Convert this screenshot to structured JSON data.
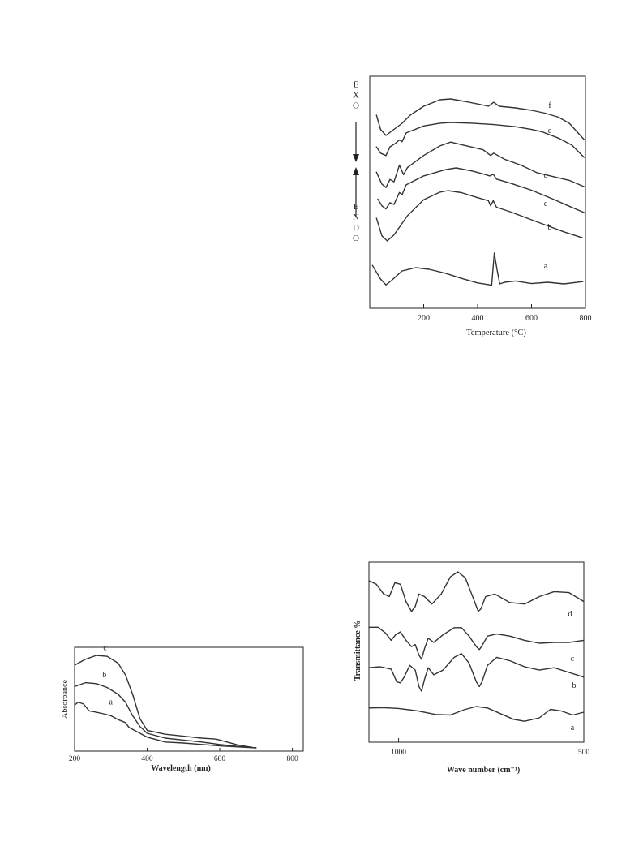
{
  "dta_figure": {
    "type": "line",
    "xlabel": "Temperature (°C)",
    "x_ticks": [
      "200",
      "400",
      "600",
      "800"
    ],
    "xlim": [
      0,
      800
    ],
    "exo_label": "EXO",
    "endo_label": "ENDO",
    "series": [
      {
        "label": "a",
        "points": [
          [
            10,
            0.62
          ],
          [
            40,
            0.2
          ],
          [
            60,
            0.02
          ],
          [
            80,
            0.15
          ],
          [
            120,
            0.45
          ],
          [
            170,
            0.55
          ],
          [
            220,
            0.5
          ],
          [
            280,
            0.38
          ],
          [
            340,
            0.22
          ],
          [
            400,
            0.08
          ],
          [
            445,
            0.02
          ],
          [
            452,
            0.0
          ],
          [
            462,
            1.0
          ],
          [
            472,
            0.5
          ],
          [
            482,
            0.05
          ],
          [
            500,
            0.1
          ],
          [
            540,
            0.14
          ],
          [
            600,
            0.06
          ],
          [
            660,
            0.1
          ],
          [
            720,
            0.05
          ],
          [
            790,
            0.12
          ]
        ]
      },
      {
        "label": "b",
        "points": [
          [
            25,
            0.45
          ],
          [
            45,
            0.1
          ],
          [
            65,
            0.0
          ],
          [
            90,
            0.12
          ],
          [
            140,
            0.5
          ],
          [
            200,
            0.82
          ],
          [
            260,
            0.97
          ],
          [
            290,
            1.0
          ],
          [
            340,
            0.96
          ],
          [
            400,
            0.86
          ],
          [
            440,
            0.8
          ],
          [
            448,
            0.7
          ],
          [
            458,
            0.8
          ],
          [
            470,
            0.67
          ],
          [
            520,
            0.58
          ],
          [
            600,
            0.42
          ],
          [
            660,
            0.3
          ],
          [
            720,
            0.18
          ],
          [
            790,
            0.06
          ]
        ]
      },
      {
        "label": "c",
        "points": [
          [
            30,
            0.3
          ],
          [
            45,
            0.15
          ],
          [
            60,
            0.08
          ],
          [
            75,
            0.22
          ],
          [
            90,
            0.18
          ],
          [
            110,
            0.45
          ],
          [
            120,
            0.4
          ],
          [
            135,
            0.62
          ],
          [
            200,
            0.82
          ],
          [
            280,
            0.96
          ],
          [
            320,
            1.0
          ],
          [
            380,
            0.93
          ],
          [
            430,
            0.85
          ],
          [
            445,
            0.82
          ],
          [
            458,
            0.86
          ],
          [
            470,
            0.75
          ],
          [
            520,
            0.66
          ],
          [
            600,
            0.5
          ],
          [
            680,
            0.3
          ],
          [
            740,
            0.14
          ],
          [
            795,
            0.0
          ]
        ]
      },
      {
        "label": "d",
        "points": [
          [
            25,
            0.35
          ],
          [
            45,
            0.1
          ],
          [
            60,
            0.03
          ],
          [
            75,
            0.2
          ],
          [
            90,
            0.15
          ],
          [
            110,
            0.5
          ],
          [
            125,
            0.3
          ],
          [
            140,
            0.45
          ],
          [
            200,
            0.7
          ],
          [
            260,
            0.9
          ],
          [
            300,
            0.98
          ],
          [
            360,
            0.9
          ],
          [
            420,
            0.82
          ],
          [
            448,
            0.7
          ],
          [
            460,
            0.75
          ],
          [
            500,
            0.62
          ],
          [
            560,
            0.5
          ],
          [
            620,
            0.34
          ],
          [
            680,
            0.26
          ],
          [
            740,
            0.18
          ],
          [
            795,
            0.05
          ]
        ]
      },
      {
        "label": "e",
        "points": [
          [
            25,
            0.3
          ],
          [
            40,
            0.12
          ],
          [
            60,
            0.05
          ],
          [
            75,
            0.3
          ],
          [
            95,
            0.4
          ],
          [
            110,
            0.5
          ],
          [
            120,
            0.45
          ],
          [
            135,
            0.7
          ],
          [
            200,
            0.9
          ],
          [
            260,
            0.98
          ],
          [
            300,
            1.0
          ],
          [
            380,
            0.98
          ],
          [
            460,
            0.94
          ],
          [
            540,
            0.88
          ],
          [
            600,
            0.8
          ],
          [
            640,
            0.73
          ],
          [
            700,
            0.55
          ],
          [
            750,
            0.35
          ],
          [
            795,
            0.0
          ]
        ]
      },
      {
        "label": "f",
        "points": [
          [
            25,
            0.5
          ],
          [
            40,
            0.15
          ],
          [
            60,
            0.0
          ],
          [
            80,
            0.1
          ],
          [
            120,
            0.3
          ],
          [
            150,
            0.5
          ],
          [
            200,
            0.72
          ],
          [
            260,
            0.88
          ],
          [
            300,
            0.9
          ],
          [
            360,
            0.83
          ],
          [
            420,
            0.75
          ],
          [
            440,
            0.72
          ],
          [
            460,
            0.82
          ],
          [
            480,
            0.72
          ],
          [
            540,
            0.68
          ],
          [
            600,
            0.62
          ],
          [
            650,
            0.55
          ],
          [
            700,
            0.45
          ],
          [
            740,
            0.3
          ],
          [
            795,
            -0.1
          ]
        ]
      }
    ]
  },
  "uv_figure": {
    "type": "line",
    "xlabel": "Wavelength (nm)",
    "ylabel": "Absorbance",
    "x_ticks": [
      "200",
      "400",
      "600",
      "800"
    ],
    "xlim": [
      200,
      830
    ],
    "ylim": [
      0,
      1
    ],
    "series": [
      {
        "label": "a",
        "points": [
          [
            200,
            0.44
          ],
          [
            210,
            0.47
          ],
          [
            225,
            0.45
          ],
          [
            240,
            0.38
          ],
          [
            255,
            0.37
          ],
          [
            280,
            0.35
          ],
          [
            300,
            0.33
          ],
          [
            320,
            0.29
          ],
          [
            340,
            0.26
          ],
          [
            350,
            0.21
          ],
          [
            370,
            0.17
          ],
          [
            400,
            0.11
          ],
          [
            450,
            0.06
          ],
          [
            500,
            0.05
          ],
          [
            550,
            0.035
          ],
          [
            600,
            0.02
          ],
          [
            650,
            0.01
          ],
          [
            700,
            0.0
          ]
        ]
      },
      {
        "label": "b",
        "points": [
          [
            200,
            0.63
          ],
          [
            230,
            0.67
          ],
          [
            260,
            0.66
          ],
          [
            290,
            0.62
          ],
          [
            320,
            0.55
          ],
          [
            340,
            0.47
          ],
          [
            360,
            0.33
          ],
          [
            380,
            0.22
          ],
          [
            400,
            0.15
          ],
          [
            450,
            0.1
          ],
          [
            500,
            0.08
          ],
          [
            550,
            0.06
          ],
          [
            600,
            0.035
          ],
          [
            650,
            0.015
          ],
          [
            700,
            0.0
          ]
        ]
      },
      {
        "label": "c",
        "points": [
          [
            200,
            0.85
          ],
          [
            230,
            0.91
          ],
          [
            260,
            0.95
          ],
          [
            290,
            0.94
          ],
          [
            320,
            0.87
          ],
          [
            340,
            0.75
          ],
          [
            360,
            0.55
          ],
          [
            380,
            0.3
          ],
          [
            400,
            0.18
          ],
          [
            450,
            0.14
          ],
          [
            500,
            0.12
          ],
          [
            550,
            0.1
          ],
          [
            590,
            0.09
          ],
          [
            620,
            0.06
          ],
          [
            650,
            0.03
          ],
          [
            690,
            0.005
          ]
        ]
      }
    ]
  },
  "ir_figure": {
    "type": "line",
    "xlabel": "Wave number (cm⁻¹)",
    "ylabel": "Transmittance %",
    "x_ticks": [
      "1000",
      "500"
    ],
    "xlim": [
      1080,
      500
    ],
    "series": [
      {
        "label": "a",
        "points": [
          [
            1080,
            0.55
          ],
          [
            1040,
            0.56
          ],
          [
            1000,
            0.53
          ],
          [
            950,
            0.45
          ],
          [
            900,
            0.32
          ],
          [
            860,
            0.3
          ],
          [
            820,
            0.5
          ],
          [
            790,
            0.6
          ],
          [
            760,
            0.55
          ],
          [
            720,
            0.32
          ],
          [
            690,
            0.15
          ],
          [
            660,
            0.08
          ],
          [
            620,
            0.2
          ],
          [
            590,
            0.5
          ],
          [
            560,
            0.44
          ],
          [
            530,
            0.3
          ],
          [
            500,
            0.4
          ]
        ]
      },
      {
        "label": "b",
        "points": [
          [
            1080,
            0.6
          ],
          [
            1050,
            0.62
          ],
          [
            1020,
            0.57
          ],
          [
            1005,
            0.3
          ],
          [
            995,
            0.28
          ],
          [
            985,
            0.4
          ],
          [
            970,
            0.65
          ],
          [
            955,
            0.55
          ],
          [
            945,
            0.2
          ],
          [
            938,
            0.1
          ],
          [
            930,
            0.35
          ],
          [
            920,
            0.6
          ],
          [
            905,
            0.45
          ],
          [
            880,
            0.55
          ],
          [
            850,
            0.82
          ],
          [
            830,
            0.9
          ],
          [
            810,
            0.7
          ],
          [
            790,
            0.3
          ],
          [
            782,
            0.2
          ],
          [
            775,
            0.3
          ],
          [
            760,
            0.65
          ],
          [
            735,
            0.82
          ],
          [
            700,
            0.75
          ],
          [
            660,
            0.62
          ],
          [
            620,
            0.55
          ],
          [
            580,
            0.6
          ],
          [
            540,
            0.5
          ],
          [
            500,
            0.4
          ]
        ]
      },
      {
        "label": "c",
        "points": [
          [
            1080,
            0.86
          ],
          [
            1055,
            0.86
          ],
          [
            1035,
            0.72
          ],
          [
            1020,
            0.55
          ],
          [
            1008,
            0.68
          ],
          [
            995,
            0.75
          ],
          [
            980,
            0.55
          ],
          [
            965,
            0.4
          ],
          [
            955,
            0.45
          ],
          [
            945,
            0.2
          ],
          [
            938,
            0.1
          ],
          [
            930,
            0.35
          ],
          [
            920,
            0.6
          ],
          [
            905,
            0.5
          ],
          [
            880,
            0.68
          ],
          [
            850,
            0.85
          ],
          [
            830,
            0.85
          ],
          [
            810,
            0.65
          ],
          [
            790,
            0.4
          ],
          [
            782,
            0.33
          ],
          [
            775,
            0.42
          ],
          [
            760,
            0.65
          ],
          [
            735,
            0.7
          ],
          [
            700,
            0.65
          ],
          [
            660,
            0.55
          ],
          [
            620,
            0.48
          ],
          [
            580,
            0.5
          ],
          [
            540,
            0.5
          ],
          [
            500,
            0.55
          ]
        ]
      },
      {
        "label": "d",
        "points": [
          [
            1080,
            0.82
          ],
          [
            1060,
            0.75
          ],
          [
            1040,
            0.55
          ],
          [
            1025,
            0.5
          ],
          [
            1010,
            0.78
          ],
          [
            995,
            0.75
          ],
          [
            980,
            0.4
          ],
          [
            965,
            0.2
          ],
          [
            955,
            0.3
          ],
          [
            945,
            0.55
          ],
          [
            930,
            0.5
          ],
          [
            910,
            0.35
          ],
          [
            885,
            0.55
          ],
          [
            860,
            0.9
          ],
          [
            840,
            1.0
          ],
          [
            820,
            0.88
          ],
          [
            800,
            0.5
          ],
          [
            785,
            0.2
          ],
          [
            778,
            0.25
          ],
          [
            765,
            0.5
          ],
          [
            740,
            0.55
          ],
          [
            700,
            0.38
          ],
          [
            660,
            0.35
          ],
          [
            620,
            0.5
          ],
          [
            580,
            0.6
          ],
          [
            540,
            0.58
          ],
          [
            500,
            0.4
          ]
        ]
      }
    ]
  }
}
